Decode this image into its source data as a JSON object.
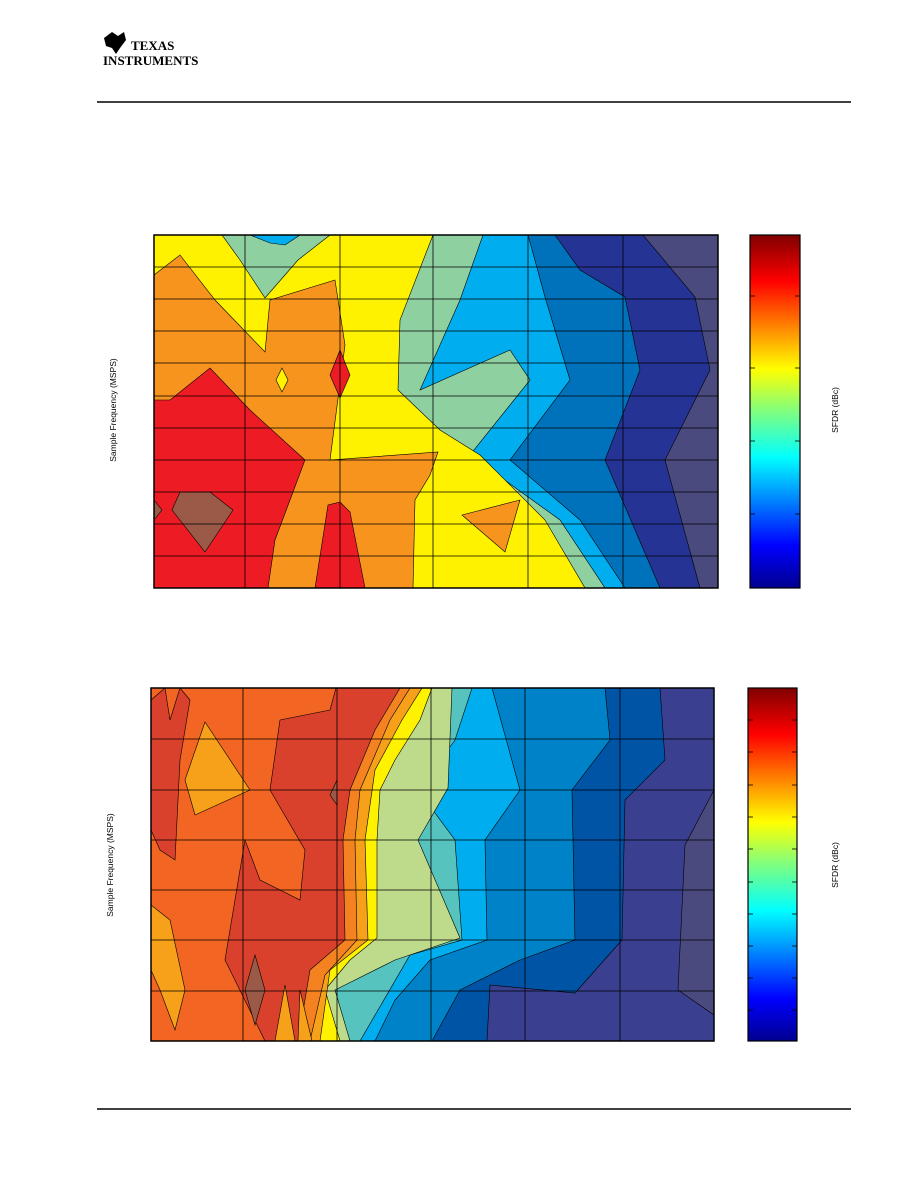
{
  "header": {
    "logo": [
      "TEXAS",
      "INSTRUMENTS"
    ]
  },
  "figures": [
    {
      "y_label": "Sample Frequency (MSPS)",
      "colorbar_label": "SFDR (dBc)"
    },
    {
      "y_label": "Sample Frequency (MSPS)",
      "colorbar_label": "SFDR (dBc)"
    }
  ]
}
